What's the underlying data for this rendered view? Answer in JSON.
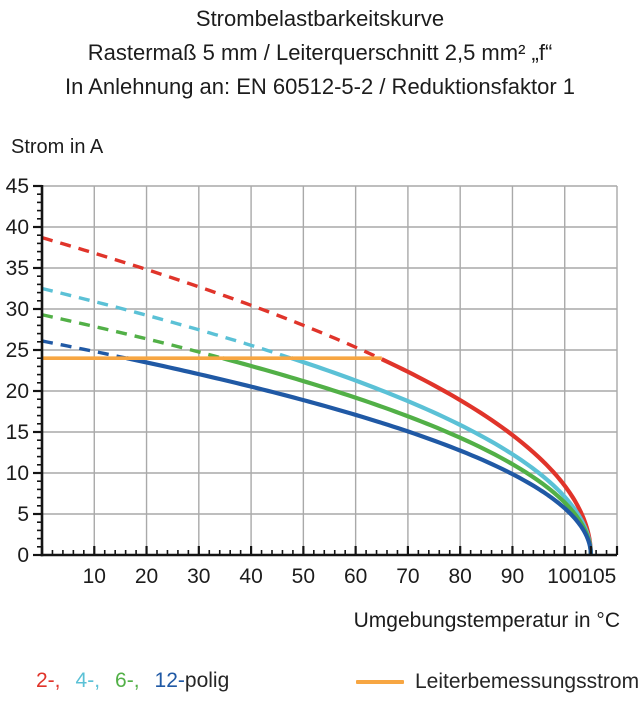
{
  "title": {
    "line1": "Strombelastbarkeitskurve",
    "line2": "Rastermaß 5 mm / Leiterquerschnitt 2,5 mm² „f“",
    "line3": "In Anlehnung an: EN 60512-5-2 / Reduktionsfaktor 1"
  },
  "y_axis": {
    "label": "Strom in A",
    "tick_labels": [
      0,
      5,
      10,
      15,
      20,
      25,
      30,
      35,
      40,
      45
    ],
    "minor_step": 1,
    "grid_step": 5,
    "min": 0,
    "max": 45
  },
  "x_axis": {
    "label": "Umgebungstemperatur in °C",
    "tick_labels": [
      10,
      20,
      30,
      40,
      50,
      60,
      70,
      80,
      90,
      100,
      105
    ],
    "minor_step": 2,
    "grid_step": 10,
    "min": 0,
    "max": 110
  },
  "colors": {
    "red": "#e0342a",
    "cyan": "#5bc1d6",
    "green": "#52b047",
    "blue": "#2059a5",
    "orange": "#f7a642",
    "grid": "#a9a9a9",
    "axis": "#141414",
    "text": "#1c1c1c"
  },
  "legend": {
    "pole_parts": [
      {
        "text": "2-,",
        "series": "2-polig",
        "color": "#e0342a"
      },
      {
        "text": "4-,",
        "series": "4-polig",
        "color": "#5bc1d6"
      },
      {
        "text": "6-,",
        "series": "6-polig",
        "color": "#52b047"
      },
      {
        "text": "12-",
        "series": "12-polig",
        "color": "#2059a5"
      }
    ],
    "suffix": "polig",
    "rated_line_label": "Leiterbemessungsstrom"
  },
  "chart_data": {
    "type": "line",
    "title": "Strombelastbarkeitskurve",
    "xlabel": "Umgebungstemperatur in °C",
    "ylabel": "Strom in A",
    "xlim": [
      0,
      110
    ],
    "ylim": [
      0,
      45
    ],
    "grid": true,
    "model": {
      "formula": "I = I0 * sqrt((Tmax - T) / Tmax)",
      "Tmax": 105
    },
    "series": [
      {
        "name": "2-polig",
        "color": "#e0342a",
        "I0": 38.7,
        "dashed_until_x": 65,
        "points": [
          [
            0,
            38.7
          ],
          [
            5,
            37.8
          ],
          [
            10,
            36.8
          ],
          [
            15,
            35.8
          ],
          [
            20,
            34.8
          ],
          [
            25,
            33.8
          ],
          [
            30,
            32.7
          ],
          [
            35,
            31.6
          ],
          [
            40,
            30.5
          ],
          [
            45,
            29.3
          ],
          [
            50,
            28.0
          ],
          [
            55,
            26.7
          ],
          [
            60,
            25.3
          ],
          [
            65,
            23.9
          ],
          [
            70,
            22.3
          ],
          [
            75,
            20.7
          ],
          [
            80,
            18.9
          ],
          [
            85,
            16.9
          ],
          [
            90,
            14.6
          ],
          [
            95,
            11.9
          ],
          [
            100,
            8.4
          ],
          [
            105,
            0
          ]
        ]
      },
      {
        "name": "4-polig",
        "color": "#5bc1d6",
        "I0": 32.5,
        "dashed_until_x": 47.7,
        "points": [
          [
            0,
            32.5
          ],
          [
            5,
            31.7
          ],
          [
            10,
            30.9
          ],
          [
            15,
            30.1
          ],
          [
            20,
            29.2
          ],
          [
            25,
            28.4
          ],
          [
            30,
            27.5
          ],
          [
            35,
            26.5
          ],
          [
            40,
            25.6
          ],
          [
            45,
            24.6
          ],
          [
            50,
            23.5
          ],
          [
            55,
            22.4
          ],
          [
            60,
            21.3
          ],
          [
            65,
            20.1
          ],
          [
            70,
            18.8
          ],
          [
            75,
            17.4
          ],
          [
            80,
            15.9
          ],
          [
            85,
            14.2
          ],
          [
            90,
            12.3
          ],
          [
            95,
            10.0
          ],
          [
            100,
            7.1
          ],
          [
            105,
            0
          ]
        ]
      },
      {
        "name": "6-polig",
        "color": "#52b047",
        "I0": 29.3,
        "dashed_until_x": 34.6,
        "points": [
          [
            0,
            29.3
          ],
          [
            5,
            28.6
          ],
          [
            10,
            27.9
          ],
          [
            15,
            27.1
          ],
          [
            20,
            26.4
          ],
          [
            25,
            25.6
          ],
          [
            30,
            24.8
          ],
          [
            35,
            23.9
          ],
          [
            40,
            23.1
          ],
          [
            45,
            22.1
          ],
          [
            50,
            21.2
          ],
          [
            55,
            20.2
          ],
          [
            60,
            19.2
          ],
          [
            65,
            18.1
          ],
          [
            70,
            16.9
          ],
          [
            75,
            15.7
          ],
          [
            80,
            14.3
          ],
          [
            85,
            12.8
          ],
          [
            90,
            11.1
          ],
          [
            95,
            9.0
          ],
          [
            100,
            6.4
          ],
          [
            105,
            0
          ]
        ]
      },
      {
        "name": "12-polig",
        "color": "#2059a5",
        "I0": 26.1,
        "dashed_until_x": 16.2,
        "points": [
          [
            0,
            26.1
          ],
          [
            5,
            25.5
          ],
          [
            10,
            24.8
          ],
          [
            15,
            24.2
          ],
          [
            20,
            23.5
          ],
          [
            25,
            22.8
          ],
          [
            30,
            22.1
          ],
          [
            35,
            21.3
          ],
          [
            40,
            20.5
          ],
          [
            45,
            19.7
          ],
          [
            50,
            18.9
          ],
          [
            55,
            18.0
          ],
          [
            60,
            17.1
          ],
          [
            65,
            16.1
          ],
          [
            70,
            15.1
          ],
          [
            75,
            13.9
          ],
          [
            80,
            12.7
          ],
          [
            85,
            11.4
          ],
          [
            90,
            9.9
          ],
          [
            95,
            8.1
          ],
          [
            100,
            5.7
          ],
          [
            105,
            0
          ]
        ]
      }
    ],
    "rated_current_line": {
      "label": "Leiterbemessungsstrom",
      "value": 24,
      "x_start": 0,
      "x_end": 65,
      "color": "#f7a642"
    },
    "legend_position": "bottom"
  }
}
